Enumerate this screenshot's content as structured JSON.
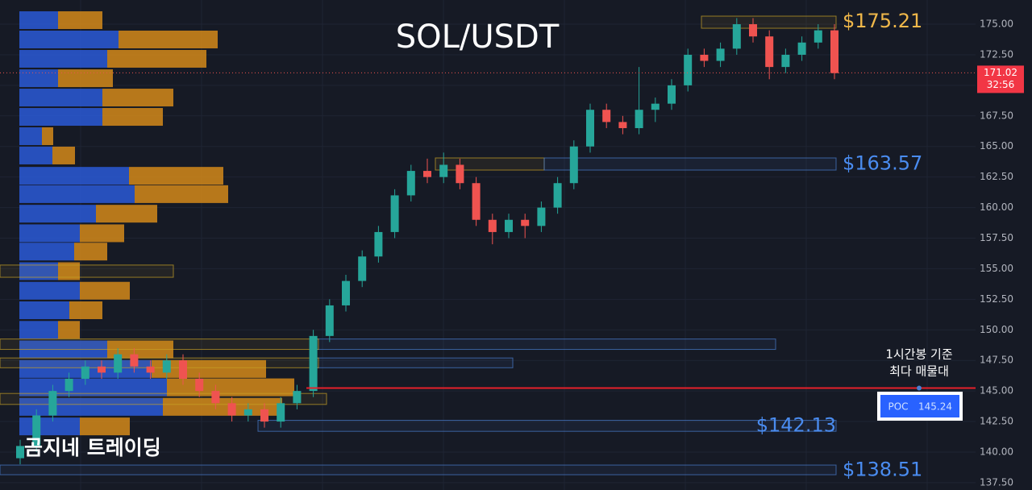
{
  "chart_data": {
    "type": "candlestick",
    "title": "SOL/USDT",
    "watermark": "곰지네 트레이딩",
    "up_color": "#26a69a",
    "down_color": "#ef5350",
    "ylim": [
      136.9,
      176.98
    ],
    "yticks": [
      {
        "value": 137.5,
        "label": "137.50"
      },
      {
        "value": 140,
        "label": "140.00"
      },
      {
        "value": 142.5,
        "label": "142.50"
      },
      {
        "value": 145,
        "label": "145.00"
      },
      {
        "value": 147.5,
        "label": "147.50"
      },
      {
        "value": 150,
        "label": "150.00"
      },
      {
        "value": 152.5,
        "label": "152.50"
      },
      {
        "value": 155,
        "label": "155.00"
      },
      {
        "value": 157.5,
        "label": "157.50"
      },
      {
        "value": 160,
        "label": "160.00"
      },
      {
        "value": 162.5,
        "label": "162.50"
      },
      {
        "value": 165,
        "label": "165.00"
      },
      {
        "value": 167.5,
        "label": "167.50"
      },
      {
        "value": 170,
        "label": "170.00"
      },
      {
        "value": 172.5,
        "label": "172.50"
      },
      {
        "value": 175,
        "label": "175.00"
      }
    ],
    "grid": true,
    "candles": [
      [
        139.5,
        141,
        139,
        140.5
      ],
      [
        140.5,
        143.5,
        140,
        143
      ],
      [
        143,
        145.5,
        142.5,
        145
      ],
      [
        145,
        146.5,
        144.5,
        146
      ],
      [
        146,
        147.5,
        145.5,
        147
      ],
      [
        147,
        147.5,
        146,
        146.5
      ],
      [
        146.5,
        148.5,
        146,
        148
      ],
      [
        148,
        148.5,
        146.5,
        147
      ],
      [
        147,
        147.5,
        146,
        146.5
      ],
      [
        146.5,
        148,
        146,
        147.5
      ],
      [
        147.5,
        148,
        145.5,
        146
      ],
      [
        146,
        146.5,
        144.5,
        145
      ],
      [
        145,
        145.5,
        143.5,
        144
      ],
      [
        144,
        144.5,
        142.5,
        143
      ],
      [
        143,
        144,
        142.5,
        143.5
      ],
      [
        143.5,
        144,
        142,
        142.5
      ],
      [
        142.5,
        144.5,
        142,
        144
      ],
      [
        144,
        145.5,
        143.5,
        145
      ],
      [
        145,
        150,
        144.5,
        149.5
      ],
      [
        149.5,
        152.5,
        149,
        152
      ],
      [
        152,
        154.5,
        151.5,
        154
      ],
      [
        154,
        156.5,
        153.5,
        156
      ],
      [
        156,
        158.5,
        155.5,
        158
      ],
      [
        158,
        161.5,
        157.5,
        161
      ],
      [
        161,
        163.5,
        160.5,
        163
      ],
      [
        163,
        164,
        162,
        162.5
      ],
      [
        162.5,
        164.5,
        162,
        163.5
      ],
      [
        163.5,
        164,
        161.5,
        162
      ],
      [
        162,
        162.5,
        158.5,
        159
      ],
      [
        159,
        159.5,
        157,
        158
      ],
      [
        158,
        159.5,
        157.5,
        159
      ],
      [
        159,
        159.5,
        157.5,
        158.5
      ],
      [
        158.5,
        160.5,
        158,
        160
      ],
      [
        160,
        162.5,
        159.5,
        162
      ],
      [
        162,
        165.5,
        161.5,
        165
      ],
      [
        165,
        168.5,
        164.5,
        168
      ],
      [
        168,
        168.5,
        166.5,
        167
      ],
      [
        167,
        167.5,
        166,
        166.5
      ],
      [
        166.5,
        171.5,
        166,
        168
      ],
      [
        168,
        169,
        167,
        168.5
      ],
      [
        168.5,
        170.5,
        168,
        170
      ],
      [
        170,
        173,
        169.5,
        172.5
      ],
      [
        172.5,
        173,
        171.5,
        172
      ],
      [
        172,
        173.5,
        171.5,
        173
      ],
      [
        173,
        175.5,
        172.5,
        175
      ],
      [
        175,
        175.5,
        173.5,
        174
      ],
      [
        174,
        174.5,
        170.5,
        171.5
      ],
      [
        171.5,
        173,
        171,
        172.5
      ],
      [
        172.5,
        174,
        172,
        173.5
      ],
      [
        173.5,
        175,
        173,
        174.5
      ],
      [
        174.5,
        175,
        170.5,
        171
      ]
    ],
    "volume_profile": {
      "prices": [
        175.33,
        173.75,
        172.17,
        170.58,
        169.0,
        167.42,
        165.84,
        164.26,
        162.6,
        161.1,
        159.5,
        157.9,
        156.4,
        154.8,
        153.2,
        151.6,
        150.0,
        148.4,
        146.8,
        145.3,
        143.7,
        142.1
      ],
      "buy": [
        48,
        123,
        109,
        48,
        103,
        103,
        28,
        41,
        136,
        143,
        95,
        75,
        68,
        48,
        75,
        62,
        48,
        109,
        164,
        183,
        178,
        75
      ],
      "sell": [
        55,
        123,
        123,
        68,
        88,
        75,
        14,
        28,
        117,
        116,
        76,
        55,
        41,
        27,
        62,
        41,
        27,
        82,
        142,
        158,
        148,
        62
      ],
      "buy_color": "#2a5bd7",
      "sell_color": "#d4891a"
    },
    "zones": [
      {
        "low": 174.67,
        "high": 175.66,
        "color": "#c9a227"
      },
      {
        "low": 163.07,
        "high": 164.06,
        "color": "#c9a227"
      },
      {
        "low": 163.07,
        "high": 164.06,
        "color": "#4a7fd0"
      },
      {
        "low": 148.4,
        "high": 149.25,
        "color": "#4a7fd0"
      },
      {
        "low": 148.4,
        "high": 149.25,
        "color": "#c9a227"
      },
      {
        "low": 146.9,
        "high": 147.7,
        "color": "#4a7fd0"
      },
      {
        "low": 146.9,
        "high": 147.7,
        "color": "#c9a227"
      },
      {
        "low": 141.7,
        "high": 142.6,
        "color": "#4a7fd0"
      },
      {
        "low": 138.15,
        "high": 138.94,
        "color": "#4a7fd0"
      },
      {
        "low": 154.3,
        "high": 155.3,
        "color": "#c9a227"
      },
      {
        "low": 143.9,
        "high": 144.8,
        "color": "#c9a227"
      }
    ],
    "levels": [
      {
        "value": 175.21,
        "label": "$175.21",
        "color": "#f0b84a"
      },
      {
        "value": 163.57,
        "label": "$163.57",
        "color": "#4a8cf0"
      },
      {
        "value": 142.13,
        "label": "$142.13",
        "color": "#4a8cf0"
      },
      {
        "value": 138.51,
        "label": "$138.51",
        "color": "#4a8cf0"
      }
    ],
    "poc": {
      "name": "POC",
      "value": 145.24,
      "color": "#e5202a"
    },
    "poc_note": [
      "1시간봉 기준",
      "최다 매물대"
    ],
    "last_price": 171.02,
    "countdown": "32:56"
  }
}
